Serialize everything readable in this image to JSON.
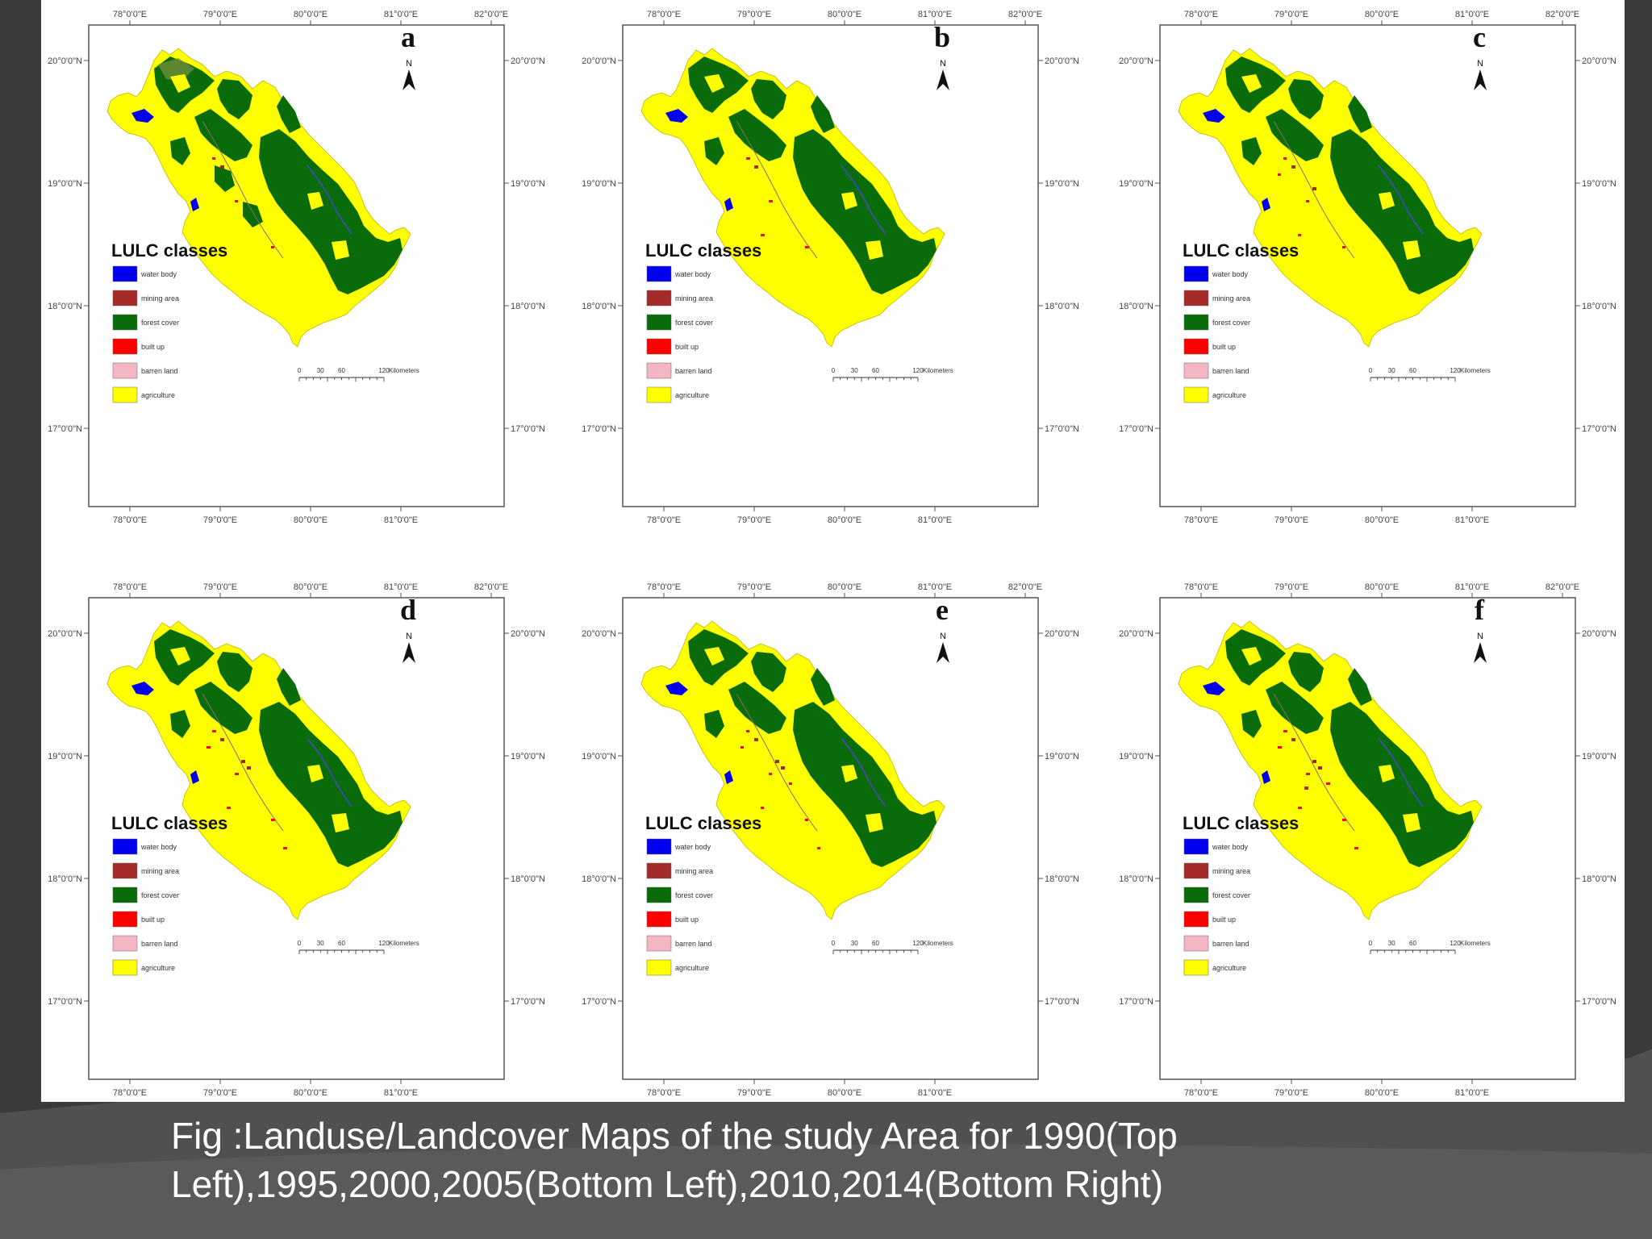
{
  "caption": "Fig :Landuse/Landcover Maps of the study Area for 1990(Top Left),1995,2000,2005(Bottom Left),2010,2014(Bottom Right)",
  "map_panels": [
    {
      "letter": "a"
    },
    {
      "letter": "b"
    },
    {
      "letter": "c"
    },
    {
      "letter": "d"
    },
    {
      "letter": "e"
    },
    {
      "letter": "f"
    }
  ],
  "longitude_ticks_top": [
    "78°0'0\"E",
    "79°0'0\"E",
    "80°0'0\"E",
    "81°0'0\"E",
    "82°0'0\"E"
  ],
  "longitude_ticks_bottom": [
    "78°0'0\"E",
    "79°0'0\"E",
    "80°0'0\"E",
    "81°0'0\"E"
  ],
  "latitude_ticks": [
    "20°0'0\"N",
    "19°0'0\"N",
    "18°0'0\"N",
    "17°0'0\"N"
  ],
  "north_arrow_label": "N",
  "legend": {
    "title": "LULC classes",
    "classes": [
      {
        "label": "water body",
        "color": "#0000ee"
      },
      {
        "label": "mining area",
        "color": "#a52a2a"
      },
      {
        "label": "forest cover",
        "color": "#0a6b0a"
      },
      {
        "label": "built up",
        "color": "#ff0000"
      },
      {
        "label": "barren land",
        "color": "#f4b6c2"
      },
      {
        "label": "agriculture",
        "color": "#ffff00"
      }
    ]
  },
  "scale_bar": {
    "ticks": [
      "0",
      "30",
      "60",
      "120"
    ],
    "unit": "Kilometers"
  }
}
